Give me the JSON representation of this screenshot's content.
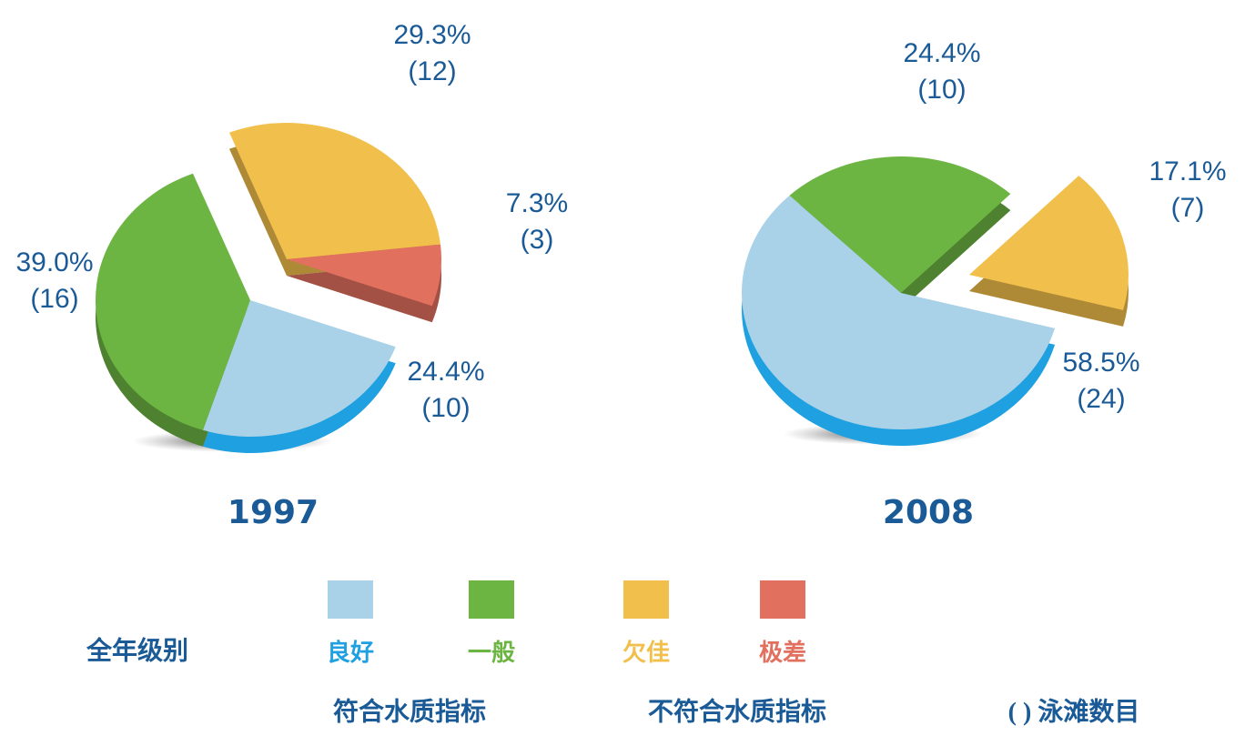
{
  "chart_data": [
    {
      "type": "pie",
      "title": "1997",
      "categories": [
        "良好",
        "一般",
        "欠佳",
        "极差"
      ],
      "values": [
        24.4,
        39.0,
        29.3,
        7.3
      ],
      "value_labels": [
        "24.4%",
        "39.0%",
        "29.3%",
        "7.3%"
      ],
      "counts": [
        10,
        16,
        12,
        3
      ],
      "count_labels": [
        "(10)",
        "(16)",
        "(12)",
        "(3)"
      ],
      "colors": [
        "#a9d1e8",
        "#6cb543",
        "#f1c04c",
        "#e2705f"
      ]
    },
    {
      "type": "pie",
      "title": "2008",
      "categories": [
        "良好",
        "一般",
        "欠佳"
      ],
      "values": [
        58.5,
        24.4,
        17.1
      ],
      "value_labels": [
        "58.5%",
        "24.4%",
        "17.1%"
      ],
      "counts": [
        24,
        10,
        7
      ],
      "count_labels": [
        "(24)",
        "(10)",
        "(7)"
      ],
      "colors": [
        "#a9d1e8",
        "#6cb543",
        "#f1c04c"
      ]
    }
  ],
  "legend": {
    "title": "全年级别",
    "groups": [
      "符合水质指标",
      "不符合水质指标"
    ],
    "note": "( ) 泳滩数目"
  }
}
